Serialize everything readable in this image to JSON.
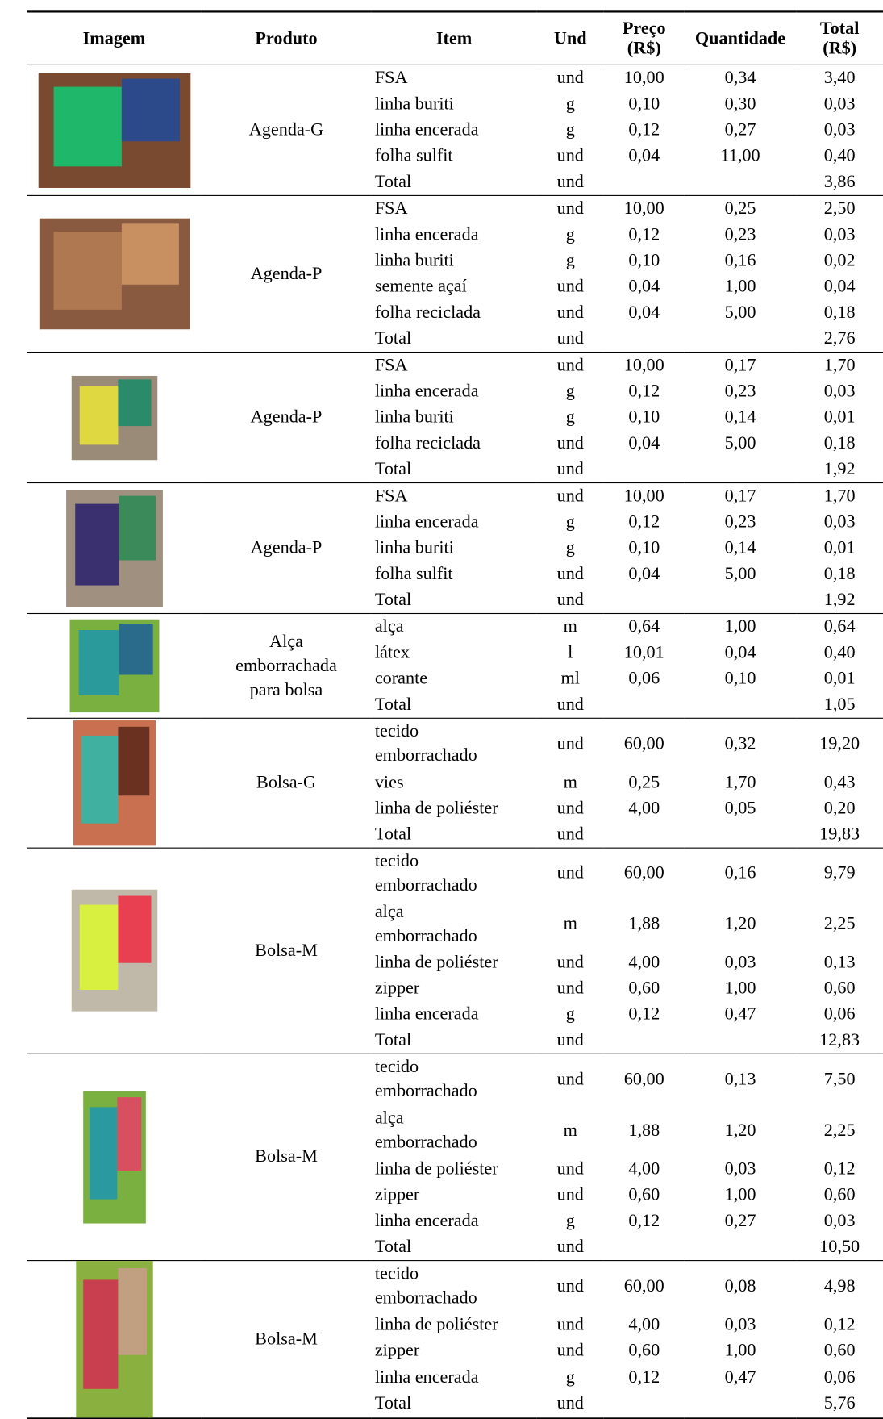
{
  "header": [
    "Imagem",
    "Produto",
    "Item",
    "Und",
    [
      "Preço",
      "(R$)"
    ],
    "Quantidade",
    [
      "Total",
      "(R$)"
    ]
  ],
  "groups": [
    {
      "product": [
        "Agenda-G"
      ],
      "rows": [
        {
          "item": "FSA",
          "unit": "und",
          "price": "10,00",
          "quantity": "0,34",
          "total": "3,40"
        },
        {
          "item": "linha buriti",
          "unit": "g",
          "price": "0,10",
          "quantity": "0,30",
          "total": "0,03"
        },
        {
          "item": "linha encerada",
          "unit": "g",
          "price": "0,12",
          "quantity": "0,27",
          "total": "0,03"
        },
        {
          "item": "folha sulfit",
          "unit": "und",
          "price": "0,04",
          "quantity": "11,00",
          "total": "0,40"
        }
      ],
      "total_row": {
        "label": "Total",
        "unit": "und",
        "value": "3,86"
      }
    },
    {
      "product": [
        "Agenda-P"
      ],
      "rows": [
        {
          "item": "FSA",
          "unit": "und",
          "price": "10,00",
          "quantity": "0,25",
          "total": "2,50"
        },
        {
          "item": "linha encerada",
          "unit": "g",
          "price": "0,12",
          "quantity": "0,23",
          "total": "0,03"
        },
        {
          "item": "linha buriti",
          "unit": "g",
          "price": "0,10",
          "quantity": "0,16",
          "total": "0,02"
        },
        {
          "item": "semente açaí",
          "unit": "und",
          "price": "0,04",
          "quantity": "1,00",
          "total": "0,04"
        },
        {
          "item": "folha reciclada",
          "unit": "und",
          "price": "0,04",
          "quantity": "5,00",
          "total": "0,18"
        }
      ],
      "total_row": {
        "label": "Total",
        "unit": "und",
        "value": "2,76"
      }
    },
    {
      "product": [
        "Agenda-P"
      ],
      "rows": [
        {
          "item": "FSA",
          "unit": "und",
          "price": "10,00",
          "quantity": "0,17",
          "total": "1,70"
        },
        {
          "item": "linha encerada",
          "unit": "g",
          "price": "0,12",
          "quantity": "0,23",
          "total": "0,03"
        },
        {
          "item": "linha buriti",
          "unit": "g",
          "price": "0,10",
          "quantity": "0,14",
          "total": "0,01"
        },
        {
          "item": "folha reciclada",
          "unit": "und",
          "price": "0,04",
          "quantity": "5,00",
          "total": "0,18"
        }
      ],
      "total_row": {
        "label": "Total",
        "unit": "und",
        "value": "1,92"
      }
    },
    {
      "product": [
        "Agenda-P"
      ],
      "rows": [
        {
          "item": "FSA",
          "unit": "und",
          "price": "10,00",
          "quantity": "0,17",
          "total": "1,70"
        },
        {
          "item": "linha encerada",
          "unit": "g",
          "price": "0,12",
          "quantity": "0,23",
          "total": "0,03"
        },
        {
          "item": "linha buriti",
          "unit": "g",
          "price": "0,10",
          "quantity": "0,14",
          "total": "0,01"
        },
        {
          "item": "folha sulfit",
          "unit": "und",
          "price": "0,04",
          "quantity": "5,00",
          "total": "0,18"
        }
      ],
      "total_row": {
        "label": "Total",
        "unit": "und",
        "value": "1,92"
      }
    },
    {
      "product": [
        "Alça",
        "emborrachada",
        "para bolsa"
      ],
      "rows": [
        {
          "item": "alça",
          "unit": "m",
          "price": "0,64",
          "quantity": "1,00",
          "total": "0,64"
        },
        {
          "item": "látex",
          "unit": "l",
          "price": "10,01",
          "quantity": "0,04",
          "total": "0,40"
        },
        {
          "item": "corante",
          "unit": "ml",
          "price": "0,06",
          "quantity": "0,10",
          "total": "0,01"
        }
      ],
      "total_row": {
        "label": "Total",
        "unit": "und",
        "value": "1,05"
      }
    },
    {
      "product": [
        "Bolsa-G"
      ],
      "rows": [
        {
          "item": [
            "tecido",
            "emborrachado"
          ],
          "unit": "und",
          "price": "60,00",
          "quantity": "0,32",
          "total": "19,20"
        },
        {
          "item": "vies",
          "unit": "m",
          "price": "0,25",
          "quantity": "1,70",
          "total": "0,43"
        },
        {
          "item": "linha de poliéster",
          "unit": "und",
          "price": "4,00",
          "quantity": "0,05",
          "total": "0,20"
        }
      ],
      "total_row": {
        "label": "Total",
        "unit": "und",
        "value": "19,83"
      }
    },
    {
      "product": [
        "Bolsa-M"
      ],
      "rows": [
        {
          "item": [
            "tecido",
            "emborrachado"
          ],
          "unit": "und",
          "price": "60,00",
          "quantity": "0,16",
          "total": "9,79"
        },
        {
          "item": [
            "alça",
            "emborrachado"
          ],
          "unit": "m",
          "price": "1,88",
          "quantity": "1,20",
          "total": "2,25"
        },
        {
          "item": "linha de poliéster",
          "unit": "und",
          "price": "4,00",
          "quantity": "0,03",
          "total": "0,13"
        },
        {
          "item": "zipper",
          "unit": "und",
          "price": "0,60",
          "quantity": "1,00",
          "total": "0,60"
        },
        {
          "item": "linha encerada",
          "unit": "g",
          "price": "0,12",
          "quantity": "0,47",
          "total": "0,06"
        }
      ],
      "total_row": {
        "label": "Total",
        "unit": "und",
        "value": "12,83"
      }
    },
    {
      "product": [
        "Bolsa-M"
      ],
      "rows": [
        {
          "item": [
            "tecido",
            "emborrachado"
          ],
          "unit": "und",
          "price": "60,00",
          "quantity": "0,13",
          "total": "7,50"
        },
        {
          "item": [
            "alça",
            "emborrachado"
          ],
          "unit": "m",
          "price": "1,88",
          "quantity": "1,20",
          "total": "2,25"
        },
        {
          "item": "linha de poliéster",
          "unit": "und",
          "price": "4,00",
          "quantity": "0,03",
          "total": "0,12"
        },
        {
          "item": "zipper",
          "unit": "und",
          "price": "0,60",
          "quantity": "1,00",
          "total": "0,60"
        },
        {
          "item": "linha encerada",
          "unit": "g",
          "price": "0,12",
          "quantity": "0,27",
          "total": "0,03"
        }
      ],
      "total_row": {
        "label": "Total",
        "unit": "und",
        "value": "10,50"
      }
    },
    {
      "product": [
        "Bolsa-M"
      ],
      "rows": [
        {
          "item": [
            "tecido",
            "emborrachado"
          ],
          "unit": "und",
          "price": "60,00",
          "quantity": "0,08",
          "total": "4,98"
        },
        {
          "item": "linha de poliéster",
          "unit": "und",
          "price": "4,00",
          "quantity": "0,03",
          "total": "0,12"
        },
        {
          "item": "zipper",
          "unit": "und",
          "price": "0,60",
          "quantity": "1,00",
          "total": "0,60"
        },
        {
          "item": "linha encerada",
          "unit": "g",
          "price": "0,12",
          "quantity": "0,47",
          "total": "0,06"
        }
      ],
      "total_row": {
        "label": "Total",
        "unit": "und",
        "value": "5,76"
      }
    }
  ]
}
